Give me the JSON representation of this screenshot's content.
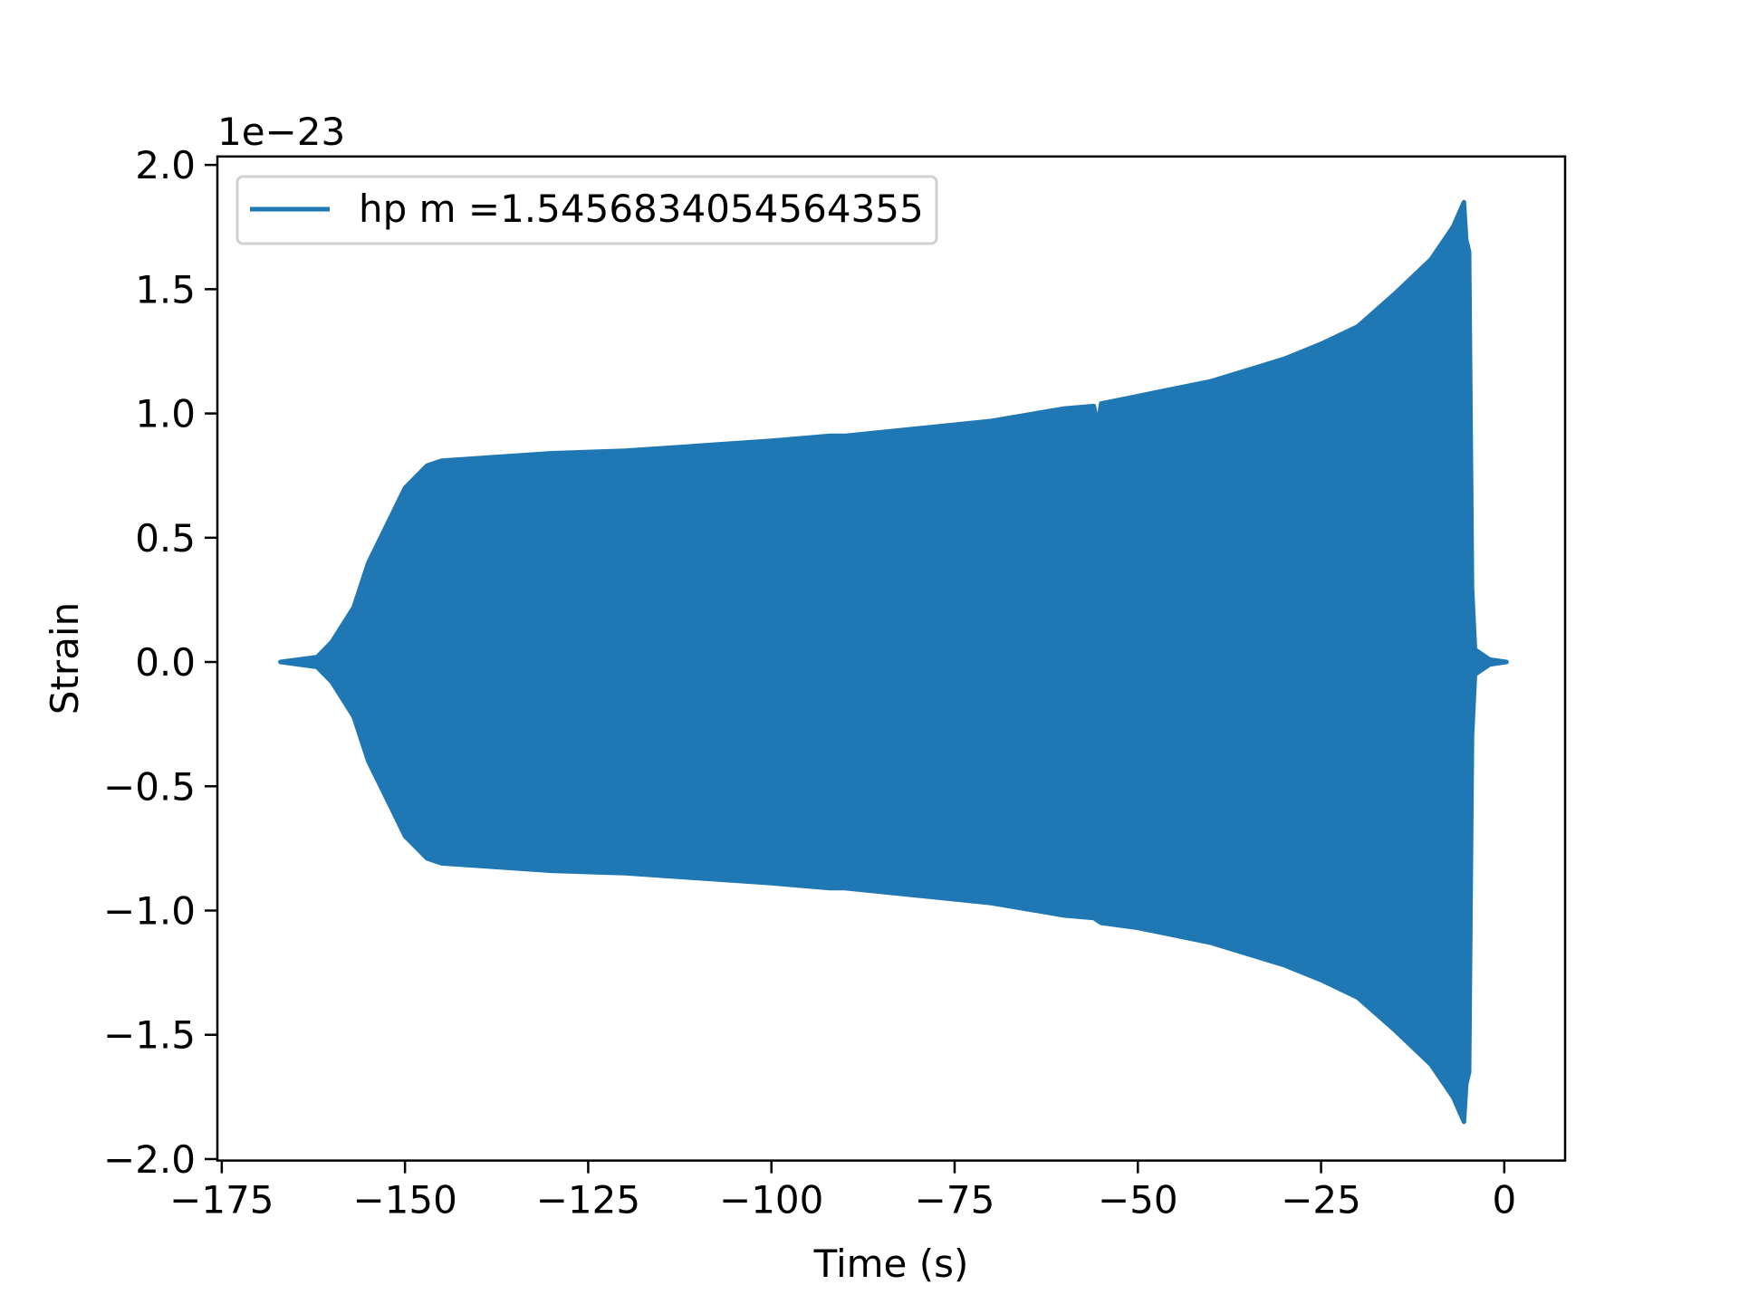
{
  "chart_data": {
    "type": "line",
    "title": "",
    "xlabel": "Time (s)",
    "ylabel": "Strain",
    "y_offset_label": "1e−23",
    "xlim": [
      -175.6,
      8.3
    ],
    "ylim": [
      -2.006,
      2.034
    ],
    "x_ticks": [
      -175,
      -150,
      -125,
      -100,
      -75,
      -50,
      -25,
      0
    ],
    "x_tick_labels": [
      "−175",
      "−150",
      "−125",
      "−100",
      "−75",
      "−50",
      "−25",
      "0"
    ],
    "y_ticks": [
      2.0,
      1.5,
      1.0,
      0.5,
      0.0,
      -0.5,
      -1.0,
      -1.5,
      -2.0
    ],
    "y_tick_labels": [
      "2.0",
      "1.5",
      "1.0",
      "0.5",
      "0.0",
      "−0.5",
      "−1.0",
      "−1.5",
      "−2.0"
    ],
    "grid": false,
    "legend_position": "top-left",
    "series": [
      {
        "name": "hp m =1.5456834054564355",
        "color": "#1f77b4",
        "note_units": "strain in units of 1e-23; rapidly oscillating signal shown as its envelope",
        "envelope": {
          "t": [
            -167,
            -162,
            -160,
            -157,
            -155,
            -152,
            -150,
            -147,
            -145,
            -140,
            -130,
            -120,
            -110,
            -100,
            -92,
            -90,
            -80,
            -70,
            -60,
            -56,
            -55.5,
            -55,
            -50,
            -40,
            -30,
            -25,
            -20,
            -15,
            -10,
            -7,
            -5.5,
            -5.2,
            -4.8,
            -4.4,
            -4,
            -2,
            0.3
          ],
          "upper": [
            0,
            0.02,
            0.08,
            0.22,
            0.4,
            0.58,
            0.7,
            0.79,
            0.81,
            0.82,
            0.84,
            0.85,
            0.87,
            0.89,
            0.91,
            0.91,
            0.94,
            0.97,
            1.02,
            1.03,
            0.95,
            1.04,
            1.07,
            1.13,
            1.22,
            1.28,
            1.35,
            1.48,
            1.62,
            1.75,
            1.85,
            1.7,
            1.65,
            0.3,
            0.05,
            0.01,
            0
          ],
          "lower": [
            0,
            -0.02,
            -0.08,
            -0.22,
            -0.4,
            -0.58,
            -0.7,
            -0.79,
            -0.81,
            -0.82,
            -0.84,
            -0.85,
            -0.87,
            -0.89,
            -0.91,
            -0.91,
            -0.94,
            -0.97,
            -1.02,
            -1.03,
            -1.04,
            -1.05,
            -1.07,
            -1.13,
            -1.22,
            -1.28,
            -1.35,
            -1.48,
            -1.62,
            -1.75,
            -1.85,
            -1.7,
            -1.65,
            -0.3,
            -0.05,
            -0.01,
            0
          ]
        }
      }
    ]
  }
}
